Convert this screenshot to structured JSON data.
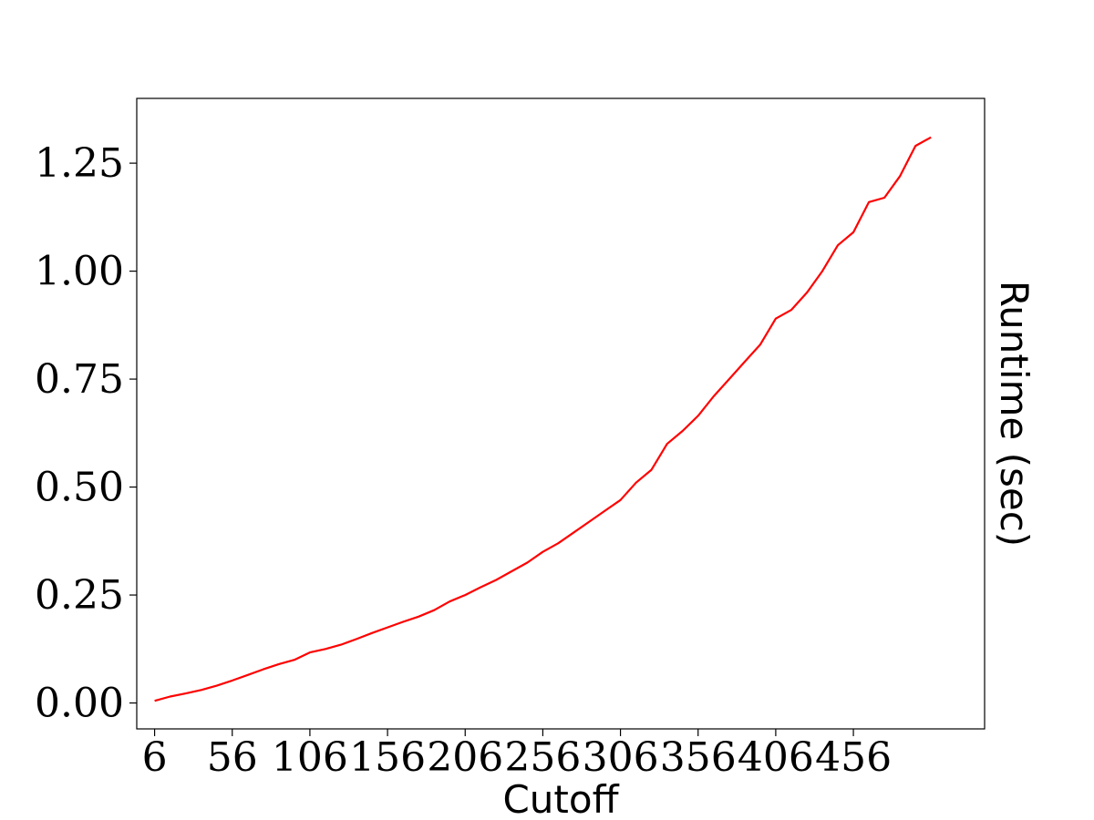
{
  "chart_data": {
    "type": "line",
    "title": "",
    "xlabel": "Cutoff",
    "ylabel": "Runtime (sec)",
    "xlim": [
      -5.5,
      540.5
    ],
    "ylim": [
      -0.06,
      1.4
    ],
    "xticks": [
      6,
      56,
      106,
      156,
      206,
      256,
      306,
      356,
      406,
      456
    ],
    "xtick_labels": [
      "6",
      "56",
      "106",
      "156",
      "206",
      "256",
      "306",
      "356",
      "406",
      "456"
    ],
    "yticks": [
      0.0,
      0.25,
      0.5,
      0.75,
      1.0,
      1.25
    ],
    "ytick_labels": [
      "0.00",
      "0.25",
      "0.50",
      "0.75",
      "1.00",
      "1.25"
    ],
    "grid": false,
    "legend": "none",
    "series": [
      {
        "color": "#ff0000",
        "x": [
          6,
          16,
          26,
          36,
          46,
          56,
          66,
          76,
          86,
          96,
          106,
          116,
          126,
          136,
          146,
          156,
          166,
          176,
          186,
          196,
          206,
          216,
          226,
          236,
          246,
          256,
          266,
          276,
          286,
          296,
          306,
          316,
          326,
          336,
          346,
          356,
          366,
          376,
          386,
          396,
          406,
          416,
          426,
          436,
          446,
          456,
          466,
          476,
          486,
          496,
          506
        ],
        "y": [
          0.005,
          0.015,
          0.022,
          0.03,
          0.04,
          0.052,
          0.065,
          0.078,
          0.09,
          0.1,
          0.117,
          0.125,
          0.135,
          0.148,
          0.162,
          0.175,
          0.188,
          0.2,
          0.215,
          0.235,
          0.25,
          0.268,
          0.285,
          0.305,
          0.325,
          0.35,
          0.37,
          0.395,
          0.42,
          0.445,
          0.47,
          0.51,
          0.54,
          0.6,
          0.63,
          0.665,
          0.71,
          0.75,
          0.79,
          0.83,
          0.89,
          0.91,
          0.95,
          1.0,
          1.06,
          1.09,
          1.16,
          1.17,
          1.22,
          1.29,
          1.31
        ]
      }
    ]
  }
}
